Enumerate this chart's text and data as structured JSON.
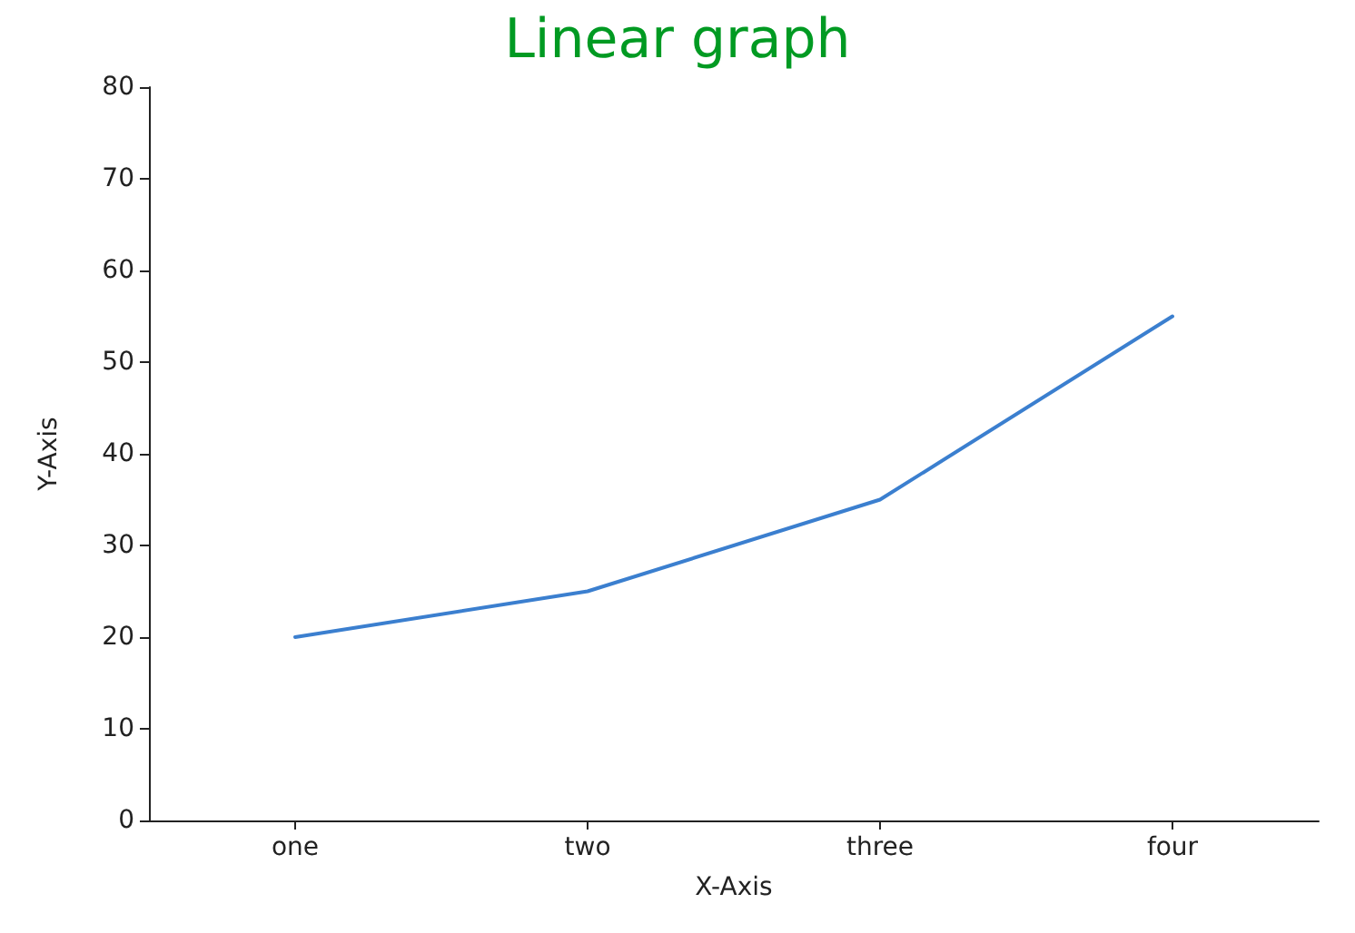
{
  "chart_data": {
    "type": "line",
    "title": "Linear graph",
    "xlabel": "X-Axis",
    "ylabel": "Y-Axis",
    "categories": [
      "one",
      "two",
      "three",
      "four"
    ],
    "series": [
      {
        "color": "#3b7fcf",
        "values": [
          20,
          25,
          35,
          55
        ]
      }
    ],
    "ylim": [
      0,
      80
    ],
    "yticks": [
      0,
      10,
      20,
      30,
      40,
      50,
      60,
      70,
      80
    ],
    "grid": false,
    "marker": "none",
    "line_style": "solid"
  }
}
